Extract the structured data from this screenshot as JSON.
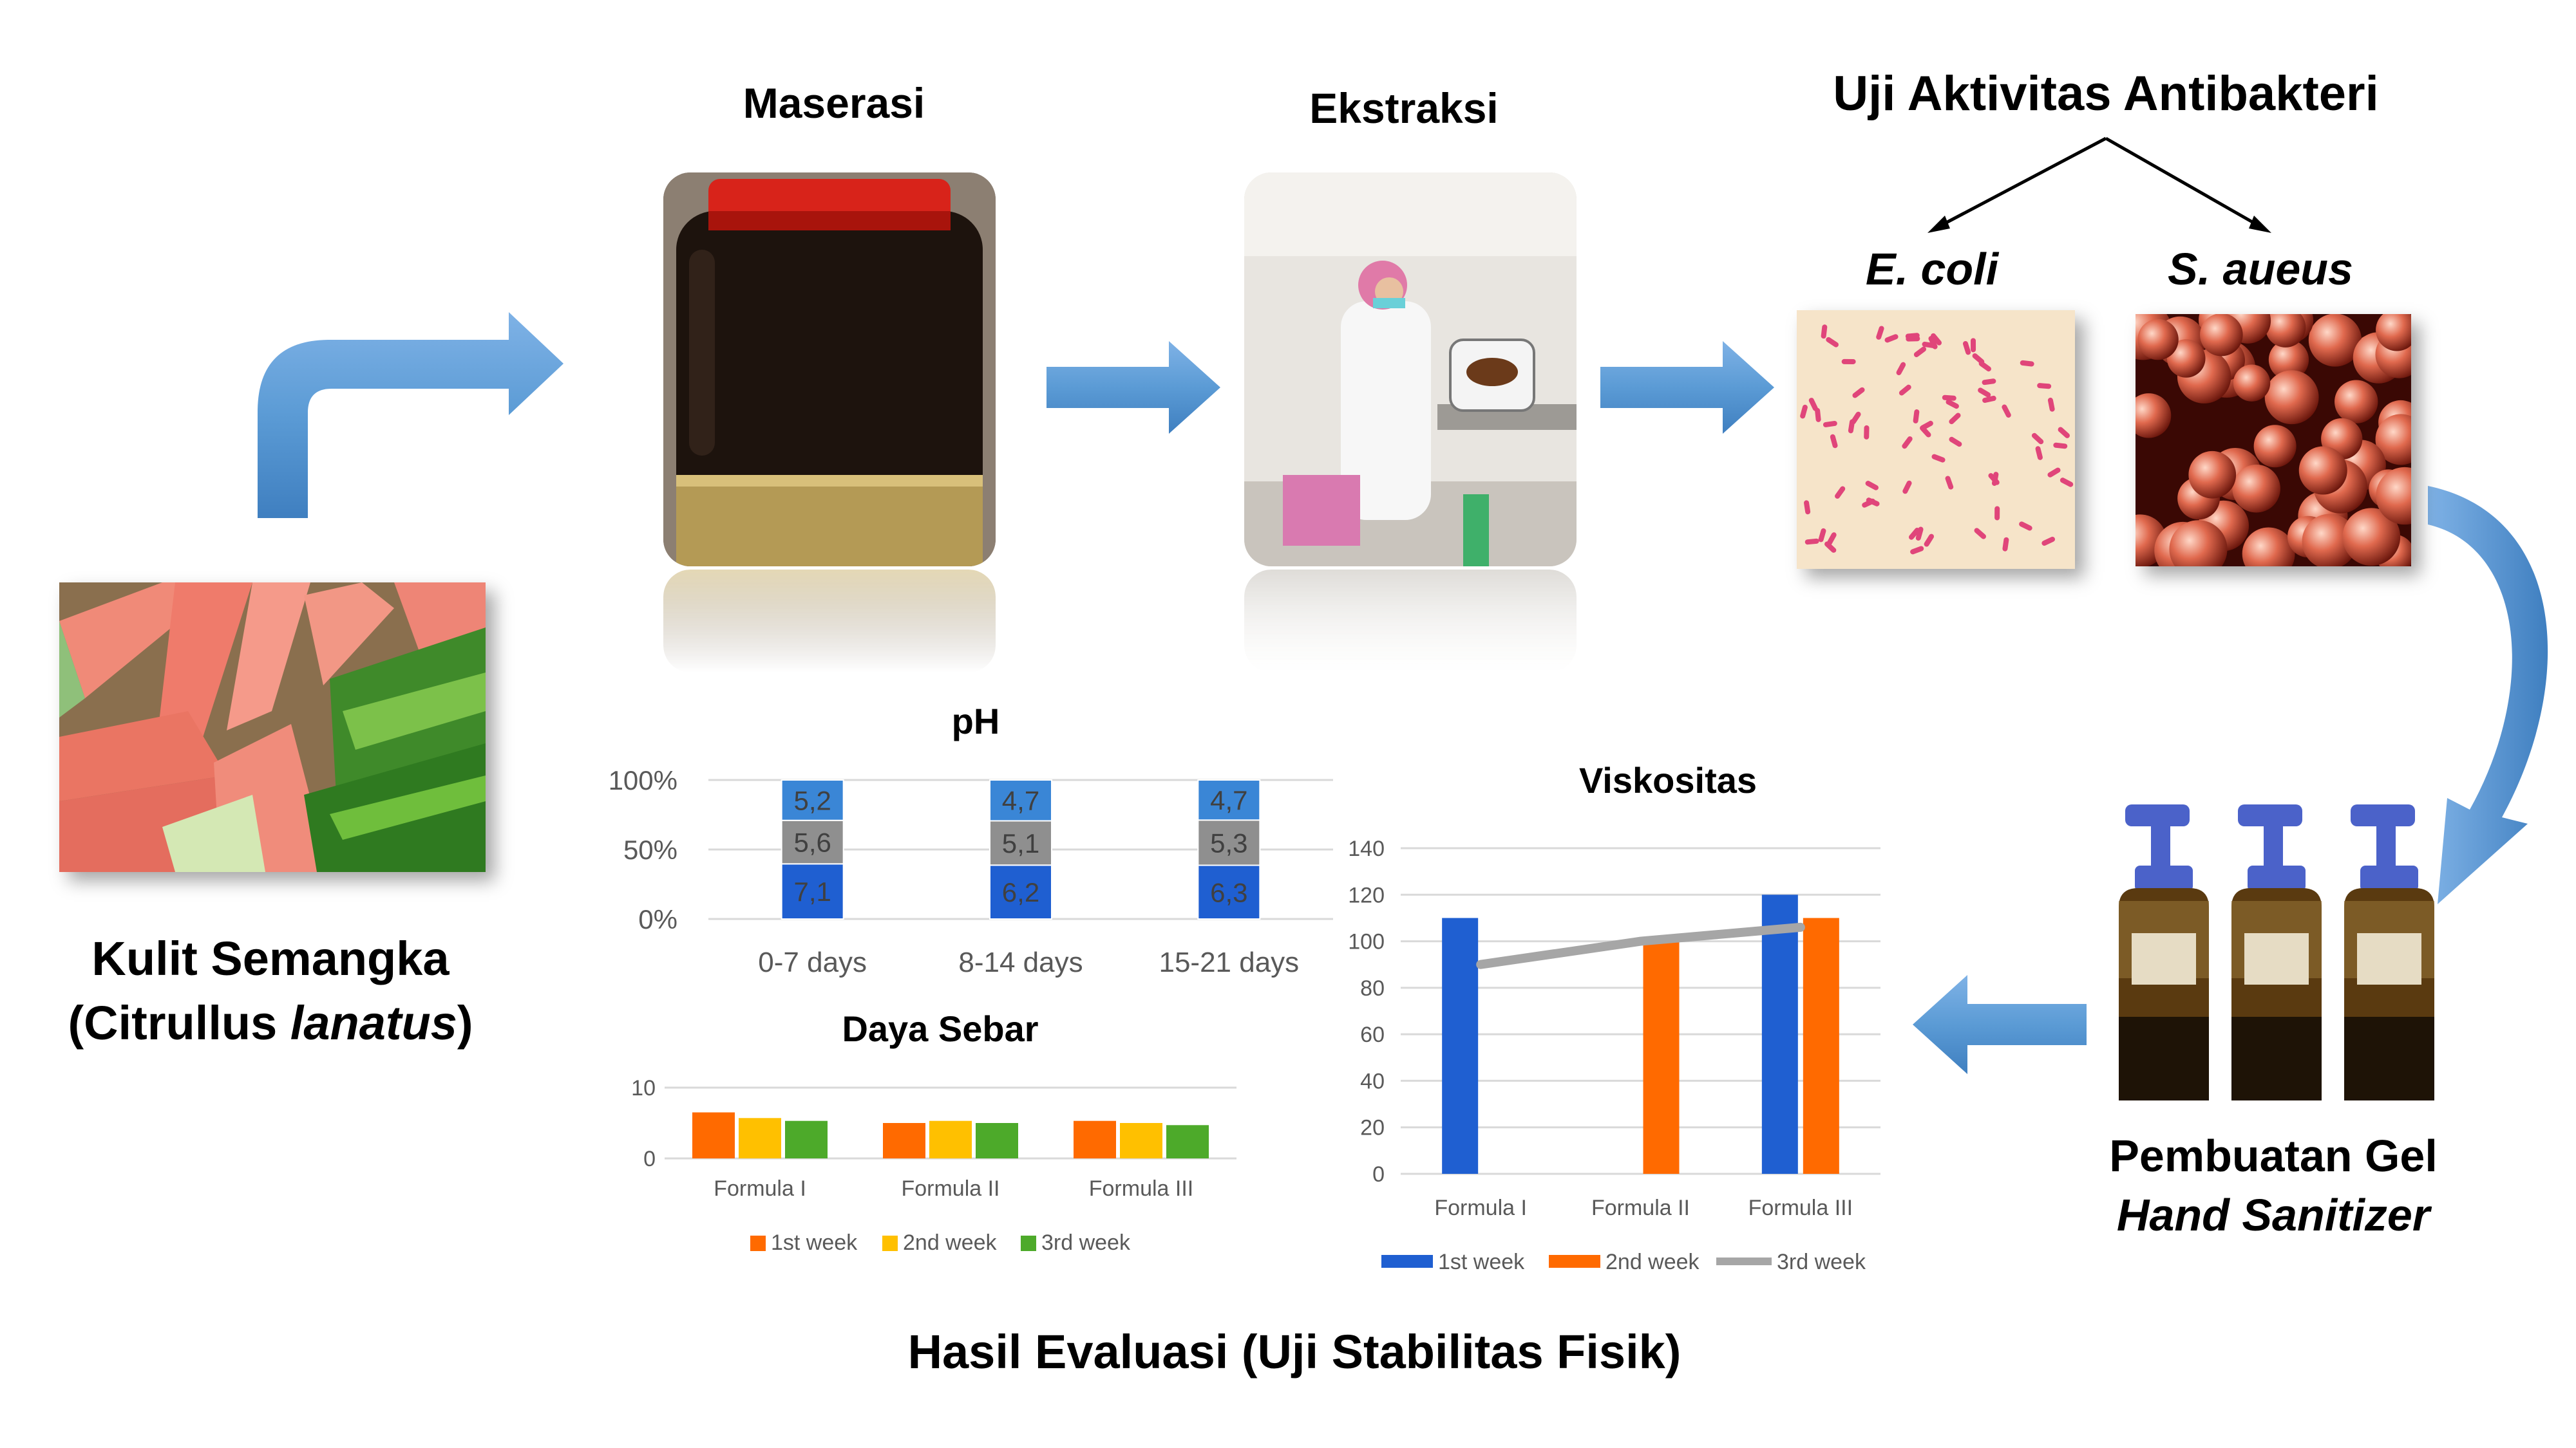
{
  "steps": {
    "kulit": {
      "line1": "Kulit Semangka",
      "line2_open": "(Citrullus ",
      "line2_italic": "lanatus",
      "line2_close": ")"
    },
    "maserasi": "Maserasi",
    "ekstraksi": "Ekstraksi",
    "uji": "Uji Aktivitas Antibakteri",
    "ecoli": "E. coli",
    "saureus": "S. aueus",
    "gel": {
      "line1": "Pembuatan Gel",
      "line2": "Hand Sanitizer"
    },
    "hasil": "Hasil Evaluasi (Uji Stabilitas Fisik)"
  },
  "colors": {
    "arrow": "#5b9bd5",
    "arrow_dark": "#3f7fc0",
    "blue": "#1f5fd1",
    "gray": "#8f8f8f",
    "lightblue": "#3a86d6",
    "orange": "#ff6a00",
    "yellow": "#ffc000",
    "green": "#4daa2a"
  },
  "chart_data": [
    {
      "type": "bar",
      "stacked": "percent",
      "title": "pH",
      "categories": [
        "0-7 days",
        "8-14 days",
        "15-21 days"
      ],
      "series": [
        {
          "values": [
            7.1,
            6.2,
            6.3
          ],
          "labels": [
            "7,1",
            "6,2",
            "6,3"
          ]
        },
        {
          "values": [
            5.6,
            5.1,
            5.3
          ],
          "labels": [
            "5,6",
            "5,1",
            "5,3"
          ]
        },
        {
          "values": [
            5.2,
            4.7,
            4.7
          ],
          "labels": [
            "5,2",
            "4,7",
            "4,7"
          ]
        }
      ],
      "ytick_labels": [
        "0%",
        "50%",
        "100%"
      ],
      "grid": true
    },
    {
      "type": "bar",
      "title": "Daya Sebar",
      "categories": [
        "Formula I",
        "Formula II",
        "Formula III"
      ],
      "series": [
        {
          "name": "1st week",
          "values": [
            6.5,
            5,
            5.3
          ]
        },
        {
          "name": "2nd week",
          "values": [
            5.7,
            5.3,
            5
          ]
        },
        {
          "name": "3rd week",
          "values": [
            5.3,
            5,
            4.7
          ]
        }
      ],
      "yticks": [
        0,
        10
      ],
      "ylim": [
        0,
        10
      ],
      "legend": "bottom",
      "grid": true
    },
    {
      "type": "bar",
      "title": "Viskositas",
      "categories": [
        "Formula I",
        "Formula II",
        "Formula III"
      ],
      "series": [
        {
          "name": "1st week",
          "kind": "bar",
          "values": [
            110,
            null,
            120
          ]
        },
        {
          "name": "2nd week",
          "kind": "bar",
          "values": [
            null,
            100,
            110
          ]
        },
        {
          "name": "3rd week",
          "kind": "line",
          "values": [
            90,
            100,
            106
          ]
        }
      ],
      "yticks": [
        0,
        20,
        40,
        60,
        80,
        100,
        120,
        140
      ],
      "ylim": [
        0,
        140
      ],
      "legend": "bottom",
      "grid": true
    }
  ]
}
